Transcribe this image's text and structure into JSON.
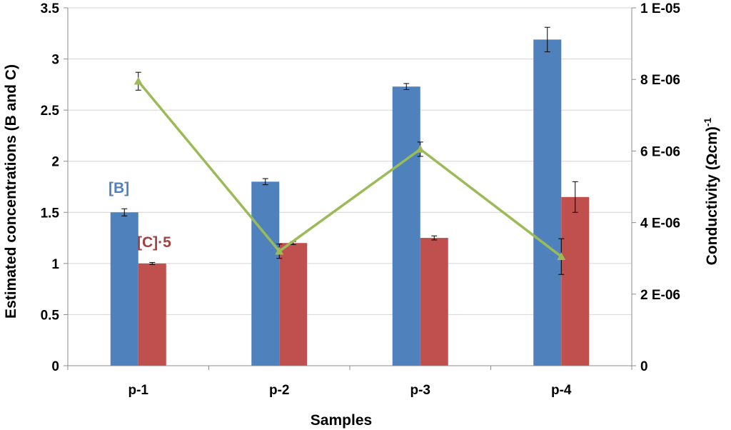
{
  "chart_data": {
    "type": "bar",
    "categories": [
      "p-1",
      "p-2",
      "p-3",
      "p-4"
    ],
    "xlabel": "Samples",
    "ylabel": "Estimated concentrations (B and C)",
    "y2label_main": "Conductivity (Ωcm)",
    "y2label_sup": "-1",
    "ylim": [
      0,
      3.5
    ],
    "y2lim": [
      0,
      1e-05
    ],
    "yticks": [
      "0",
      "0.5",
      "1",
      "1.5",
      "2",
      "2.5",
      "3",
      "3.5"
    ],
    "y2ticks": [
      "0",
      "2 E-06",
      "4 E-06",
      "6 E-06",
      "8 E-06",
      "1 E-05"
    ],
    "grid": true,
    "series": [
      {
        "name": "[B]",
        "axis": "left",
        "kind": "bar",
        "color": "#4F81BD",
        "values": [
          1.5,
          1.8,
          2.73,
          3.19
        ],
        "errors": [
          0.035,
          0.03,
          0.03,
          0.12
        ]
      },
      {
        "name": "[C]·5",
        "axis": "left",
        "kind": "bar",
        "color": "#C0504D",
        "values": [
          1.0,
          1.2,
          1.25,
          1.65
        ],
        "errors": [
          0.01,
          0.015,
          0.02,
          0.15
        ]
      },
      {
        "name": "Conductivity",
        "axis": "right",
        "kind": "line",
        "color": "#9BBB59",
        "values": [
          7.95e-06,
          3.2e-06,
          6.05e-06,
          3.05e-06
        ],
        "errors": [
          2.5e-07,
          2e-07,
          2e-07,
          5e-07
        ]
      }
    ],
    "annotations": [
      {
        "text": "[B]",
        "color": "#4F81BD"
      },
      {
        "text": "[C]·5",
        "color": "#A5403D"
      }
    ]
  }
}
